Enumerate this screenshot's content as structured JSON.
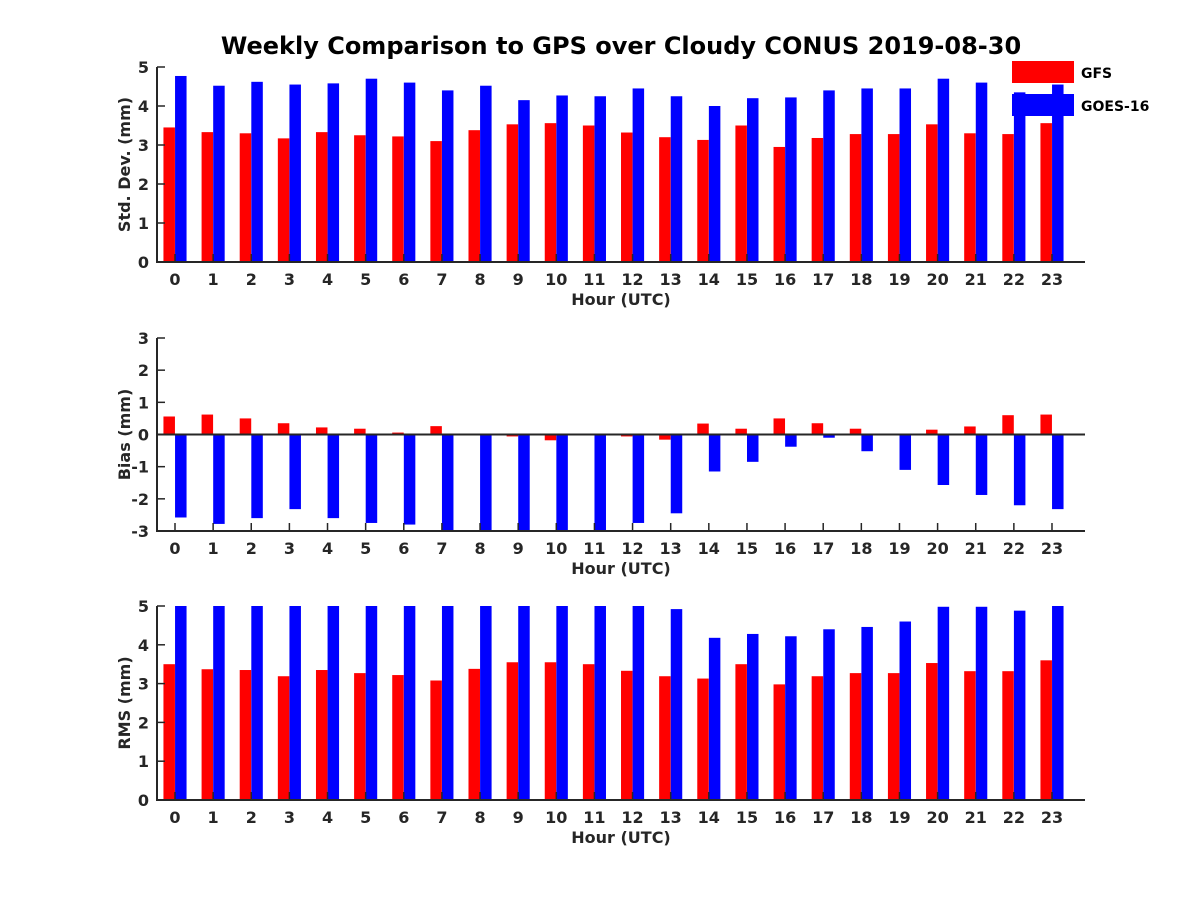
{
  "title": "Weekly Comparison to GPS over Cloudy CONUS 2019-08-30",
  "legend": [
    {
      "label": "GFS",
      "color": "#ff0000"
    },
    {
      "label": "GOES-16",
      "color": "#0000ff"
    }
  ],
  "chart_data": [
    {
      "type": "bar",
      "ylabel": "Std. Dev. (mm)",
      "xlabel": "Hour (UTC)",
      "ylim": [
        0,
        5
      ],
      "yticks": [
        0,
        1,
        2,
        3,
        4,
        5
      ],
      "categories": [
        "0",
        "1",
        "2",
        "3",
        "4",
        "5",
        "6",
        "7",
        "8",
        "9",
        "10",
        "11",
        "12",
        "13",
        "14",
        "15",
        "16",
        "17",
        "18",
        "19",
        "20",
        "21",
        "22",
        "23"
      ],
      "series": [
        {
          "name": "GFS",
          "color": "#ff0000",
          "values": [
            3.45,
            3.33,
            3.3,
            3.17,
            3.33,
            3.25,
            3.22,
            3.1,
            3.38,
            3.53,
            3.56,
            3.5,
            3.32,
            3.2,
            3.13,
            3.5,
            2.95,
            3.18,
            3.28,
            3.28,
            3.53,
            3.3,
            3.28,
            3.56
          ]
        },
        {
          "name": "GOES-16",
          "color": "#0000ff",
          "values": [
            4.77,
            4.52,
            4.62,
            4.55,
            4.58,
            4.7,
            4.6,
            4.4,
            4.52,
            4.15,
            4.27,
            4.25,
            4.45,
            4.25,
            4.0,
            4.2,
            4.22,
            4.4,
            4.45,
            4.45,
            4.7,
            4.6,
            4.35,
            4.55
          ]
        }
      ]
    },
    {
      "type": "bar",
      "ylabel": "Bias (mm)",
      "xlabel": "Hour (UTC)",
      "ylim": [
        -3,
        3
      ],
      "yticks": [
        -3,
        -2,
        -1,
        0,
        1,
        2,
        3
      ],
      "categories": [
        "0",
        "1",
        "2",
        "3",
        "4",
        "5",
        "6",
        "7",
        "8",
        "9",
        "10",
        "11",
        "12",
        "13",
        "14",
        "15",
        "16",
        "17",
        "18",
        "19",
        "20",
        "21",
        "22",
        "23"
      ],
      "series": [
        {
          "name": "GFS",
          "color": "#ff0000",
          "values": [
            0.56,
            0.62,
            0.5,
            0.35,
            0.22,
            0.18,
            0.06,
            0.26,
            -0.02,
            -0.06,
            -0.18,
            0.0,
            -0.06,
            -0.16,
            0.34,
            0.18,
            0.5,
            0.35,
            0.18,
            0.0,
            0.15,
            0.25,
            0.6,
            0.62
          ]
        },
        {
          "name": "GOES-16",
          "color": "#0000ff",
          "values": [
            -2.58,
            -2.78,
            -2.6,
            -2.32,
            -2.6,
            -2.75,
            -2.8,
            -3.0,
            -3.0,
            -3.0,
            -3.0,
            -3.0,
            -2.75,
            -2.45,
            -1.15,
            -0.85,
            -0.38,
            -0.1,
            -0.52,
            -1.1,
            -1.57,
            -1.88,
            -2.2,
            -2.32
          ]
        }
      ]
    },
    {
      "type": "bar",
      "ylabel": "RMS (mm)",
      "xlabel": "Hour (UTC)",
      "ylim": [
        0,
        5
      ],
      "yticks": [
        0,
        1,
        2,
        3,
        4,
        5
      ],
      "categories": [
        "0",
        "1",
        "2",
        "3",
        "4",
        "5",
        "6",
        "7",
        "8",
        "9",
        "10",
        "11",
        "12",
        "13",
        "14",
        "15",
        "16",
        "17",
        "18",
        "19",
        "20",
        "21",
        "22",
        "23"
      ],
      "series": [
        {
          "name": "GFS",
          "color": "#ff0000",
          "values": [
            3.5,
            3.37,
            3.35,
            3.19,
            3.35,
            3.27,
            3.22,
            3.08,
            3.38,
            3.55,
            3.55,
            3.5,
            3.33,
            3.19,
            3.13,
            3.5,
            2.98,
            3.19,
            3.27,
            3.27,
            3.53,
            3.32,
            3.32,
            3.6
          ]
        },
        {
          "name": "GOES-16",
          "color": "#0000ff",
          "values": [
            5.0,
            5.0,
            5.0,
            5.0,
            5.0,
            5.0,
            5.0,
            5.0,
            5.0,
            5.0,
            5.0,
            5.0,
            5.0,
            4.92,
            4.18,
            4.28,
            4.22,
            4.4,
            4.46,
            4.6,
            4.98,
            4.98,
            4.88,
            5.0
          ]
        }
      ]
    }
  ]
}
